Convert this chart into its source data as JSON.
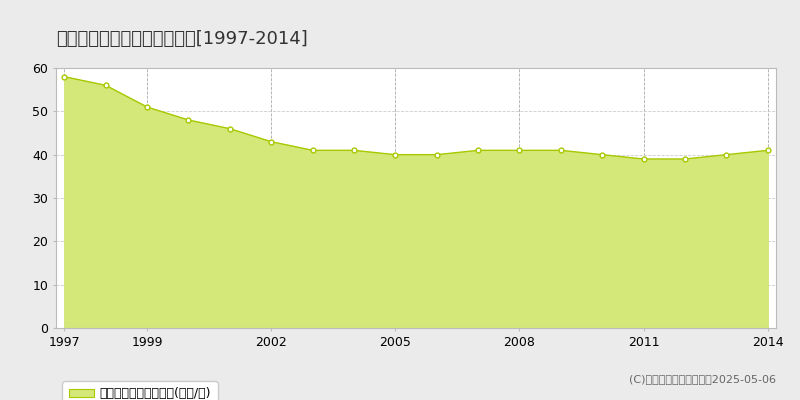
{
  "title": "知立市新地町　基準地価推移[1997-2014]",
  "years": [
    1997,
    1998,
    1999,
    2000,
    2001,
    2002,
    2003,
    2004,
    2005,
    2006,
    2007,
    2008,
    2009,
    2010,
    2011,
    2012,
    2013,
    2014
  ],
  "values": [
    58,
    56,
    51,
    48,
    46,
    43,
    41,
    41,
    40,
    40,
    41,
    41,
    41,
    40,
    39,
    39,
    40,
    41
  ],
  "line_color": "#a8c800",
  "fill_color": "#d4e87a",
  "marker_color": "#ffffff",
  "marker_edge_color": "#a8c800",
  "background_color": "#ebebeb",
  "plot_bg_color": "#ffffff",
  "grid_color_h": "#cccccc",
  "grid_color_v": "#aaaaaa",
  "ylim": [
    0,
    60
  ],
  "yticks": [
    0,
    10,
    20,
    30,
    40,
    50,
    60
  ],
  "xlim_start": 1997,
  "xlim_end": 2014,
  "xticks": [
    1997,
    1999,
    2002,
    2005,
    2008,
    2011,
    2014
  ],
  "legend_label": "基準地価　平均坪単価(万円/坪)",
  "copyright_text": "(C)土地価格ドットコム　2025-05-06",
  "title_fontsize": 13,
  "tick_fontsize": 9,
  "legend_fontsize": 9,
  "copyright_fontsize": 8
}
